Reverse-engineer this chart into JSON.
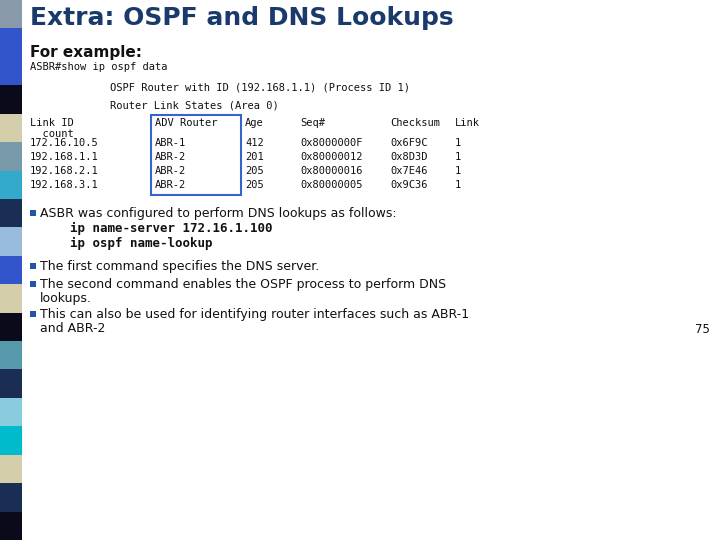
{
  "title": "Extra: OSPF and DNS Lookups",
  "title_color": "#1a3a6b",
  "title_fontsize": 18,
  "bg_color": "#ffffff",
  "left_bar_colors": [
    "#8899aa",
    "#3355cc",
    "#3355cc",
    "#0a0a1a",
    "#d4ceaa",
    "#7799aa",
    "#33aacc",
    "#1a2d55",
    "#99bbdd",
    "#3355cc",
    "#d4ceaa",
    "#0a0a1a",
    "#5599aa",
    "#1a2d55",
    "#88ccdd",
    "#00bbcc",
    "#d4ceaa",
    "#1a2d55",
    "#0a0a1a"
  ],
  "subtitle": "For example:",
  "subtitle_fontsize": 11,
  "cmd1": "ASBR#show ip ospf data",
  "ospf_header1": "OSPF Router with ID (192.168.1.1) (Process ID 1)",
  "ospf_header2": "Router Link States (Area 0)",
  "table_rows": [
    [
      "172.16.10.5",
      "ABR-1",
      "412",
      "0x8000000F",
      "0x6F9C",
      "1"
    ],
    [
      "192.168.1.1",
      "ABR-2",
      "201",
      "0x80000012",
      "0x8D3D",
      "1"
    ],
    [
      "192.168.2.1",
      "ABR-2",
      "205",
      "0x80000016",
      "0x7E46",
      "1"
    ],
    [
      "192.168.3.1",
      "ABR-2",
      "205",
      "0x80000005",
      "0x9C36",
      "1"
    ]
  ],
  "bullet_color": "#2255aa",
  "bullet1_text": "ASBR was configured to perform DNS lookups as follows:",
  "bullet1_code": [
    "ip name-server 172.16.1.100",
    "ip ospf name-lookup"
  ],
  "bullet2_text": "The first command specifies the DNS server.",
  "bullet3_line1": "The second command enables the OSPF process to perform DNS",
  "bullet3_line2": "lookups.",
  "bullet4_line1": "This can also be used for identifying router interfaces such as ABR-1",
  "bullet4_line2": "and ABR-2",
  "page_num": "75"
}
